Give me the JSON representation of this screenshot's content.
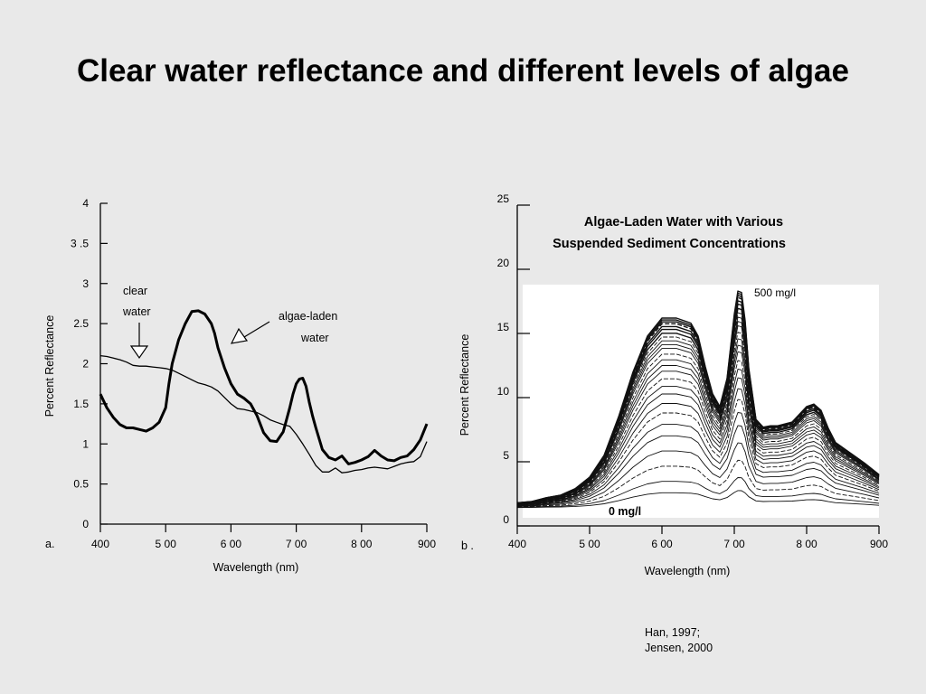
{
  "slide": {
    "title": "Clear water reflectance and different levels of algae",
    "citation_line1": "Han, 1997;",
    "citation_line2": "Jensen, 2000"
  },
  "chart_data": [
    {
      "type": "line",
      "panel_label": "a.",
      "xlabel": "Wavelength (nm)",
      "ylabel": "Percent Reflectance",
      "xlim": [
        400,
        900
      ],
      "ylim": [
        0,
        4
      ],
      "xticks": [
        400,
        500,
        600,
        700,
        800,
        900
      ],
      "xtick_labels": [
        "400",
        "5 00",
        "6 00",
        "7 00",
        "8 00",
        "900"
      ],
      "yticks": [
        0,
        0.5,
        1,
        1.5,
        2,
        2.5,
        3,
        3.5,
        4
      ],
      "ytick_labels": [
        "0",
        "0.5",
        "1",
        "1.5",
        "2",
        "2.5",
        "3",
        "3 .5",
        "4"
      ],
      "series": [
        {
          "name": "clear water",
          "x": [
            400,
            410,
            420,
            430,
            440,
            450,
            460,
            470,
            480,
            490,
            500,
            510,
            520,
            530,
            540,
            550,
            560,
            570,
            580,
            590,
            600,
            610,
            620,
            630,
            640,
            650,
            660,
            670,
            680,
            690,
            700,
            710,
            720,
            730,
            740,
            750,
            760,
            770,
            780,
            790,
            800,
            810,
            820,
            830,
            840,
            850,
            860,
            870,
            880,
            890,
            900
          ],
          "values": [
            2.1,
            2.09,
            2.07,
            2.05,
            2.02,
            1.98,
            1.97,
            1.97,
            1.96,
            1.95,
            1.94,
            1.92,
            1.88,
            1.84,
            1.8,
            1.76,
            1.74,
            1.71,
            1.66,
            1.58,
            1.5,
            1.44,
            1.43,
            1.41,
            1.39,
            1.35,
            1.3,
            1.27,
            1.24,
            1.22,
            1.12,
            1.0,
            0.87,
            0.73,
            0.65,
            0.65,
            0.7,
            0.64,
            0.65,
            0.67,
            0.68,
            0.7,
            0.71,
            0.7,
            0.69,
            0.72,
            0.75,
            0.77,
            0.78,
            0.84,
            1.03
          ]
        },
        {
          "name": "algae-laden water",
          "x": [
            400,
            410,
            420,
            430,
            440,
            450,
            460,
            470,
            480,
            490,
            500,
            505,
            510,
            520,
            530,
            540,
            550,
            560,
            570,
            575,
            580,
            590,
            600,
            610,
            620,
            630,
            640,
            650,
            660,
            670,
            680,
            690,
            695,
            700,
            705,
            710,
            715,
            720,
            725,
            730,
            740,
            750,
            760,
            770,
            780,
            790,
            800,
            810,
            820,
            830,
            840,
            850,
            860,
            870,
            880,
            890,
            900
          ],
          "values": [
            1.62,
            1.45,
            1.33,
            1.24,
            1.2,
            1.2,
            1.18,
            1.16,
            1.2,
            1.27,
            1.45,
            1.75,
            2.0,
            2.3,
            2.5,
            2.65,
            2.66,
            2.62,
            2.5,
            2.38,
            2.2,
            1.95,
            1.75,
            1.62,
            1.57,
            1.5,
            1.35,
            1.14,
            1.04,
            1.03,
            1.15,
            1.45,
            1.62,
            1.75,
            1.81,
            1.82,
            1.72,
            1.52,
            1.35,
            1.2,
            0.93,
            0.83,
            0.8,
            0.85,
            0.75,
            0.77,
            0.8,
            0.84,
            0.92,
            0.85,
            0.8,
            0.79,
            0.83,
            0.85,
            0.93,
            1.05,
            1.25
          ]
        }
      ],
      "annotations": [
        "clear",
        "water",
        "algae-laden",
        "water"
      ]
    },
    {
      "type": "line",
      "panel_label": "b .",
      "title": "Algae-Laden Water with Various Suspended Sediment Concentrations",
      "title_line1": "Algae-Laden Water with Various",
      "title_line2": "Suspended Sediment Concentrations",
      "xlabel": "Wavelength (nm)",
      "ylabel": "Percent Reflectance",
      "xlim": [
        400,
        900
      ],
      "ylim": [
        0,
        25
      ],
      "xticks": [
        400,
        500,
        600,
        700,
        800,
        900
      ],
      "xtick_labels": [
        "400",
        "5 00",
        "6 00",
        "7 00",
        "8 00",
        "900"
      ],
      "yticks": [
        0,
        5,
        10,
        15,
        20,
        25
      ],
      "ytick_labels": [
        "0",
        "5",
        "10",
        "15",
        "20",
        "25"
      ],
      "series_labels": {
        "top": "500 mg/l",
        "bottom": "0 mg/l"
      },
      "shape": {
        "x": [
          400,
          420,
          440,
          460,
          480,
          500,
          520,
          540,
          560,
          580,
          600,
          620,
          640,
          650,
          660,
          670,
          680,
          690,
          700,
          705,
          710,
          715,
          720,
          730,
          740,
          750,
          760,
          780,
          800,
          810,
          820,
          830,
          840,
          860,
          880,
          900
        ],
        "values": [
          1.8,
          1.9,
          2.2,
          2.4,
          2.9,
          3.8,
          5.5,
          8.5,
          12.0,
          14.8,
          16.2,
          16.2,
          15.8,
          14.8,
          12.4,
          10.3,
          9.3,
          11.5,
          16.5,
          18.3,
          18.2,
          16.0,
          12.3,
          8.3,
          7.7,
          7.8,
          7.8,
          8.1,
          9.3,
          9.5,
          9.0,
          7.6,
          6.5,
          5.7,
          4.9,
          4.0
        ]
      },
      "scales": [
        0.08,
        0.14,
        0.22,
        0.3,
        0.38,
        0.44,
        0.5,
        0.55,
        0.6,
        0.64,
        0.68,
        0.72,
        0.75,
        0.78,
        0.81,
        0.84,
        0.86,
        0.88,
        0.9,
        0.92,
        0.94,
        0.955,
        0.97,
        0.98,
        0.99,
        1.0
      ]
    }
  ]
}
